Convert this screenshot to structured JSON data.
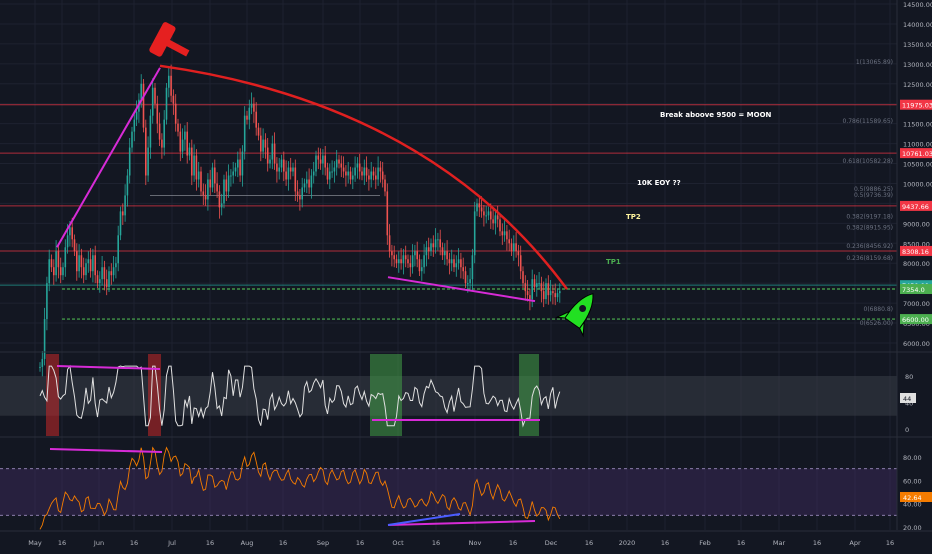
{
  "chart_data": {
    "type": "candlestick",
    "title": "",
    "xlabel": "",
    "ylabel": "",
    "ylim": [
      5800,
      14650
    ],
    "y_ticks": [
      "6000.00",
      "6500.00",
      "7000.00",
      "7500.00",
      "8000.00",
      "8500.00",
      "9000.00",
      "9500.00",
      "10000.00",
      "10500.00",
      "11000.00",
      "11500.00",
      "12000.00",
      "12500.00",
      "13000.00",
      "13500.00",
      "14000.00",
      "14500.00"
    ],
    "x_ticks": [
      "May",
      "16",
      "Jun",
      "16",
      "Jul",
      "16",
      "Aug",
      "16",
      "Sep",
      "16",
      "Oct",
      "16",
      "Nov",
      "16",
      "Dec",
      "16",
      "2020",
      "16",
      "Feb",
      "16",
      "Mar",
      "16",
      "Apr",
      "16"
    ],
    "price_markers": [
      {
        "label": "11975.03",
        "value": 11975,
        "color": "#f23645"
      },
      {
        "label": "10761.03",
        "value": 10761,
        "color": "#f23645"
      },
      {
        "label": "9437.66",
        "value": 9437.66,
        "color": "#f23645"
      },
      {
        "label": "8308.16",
        "value": 8308.16,
        "color": "#f23645"
      },
      {
        "label": "7450.00",
        "value": 7450,
        "color": "#26a69a"
      },
      {
        "label": "7354.0",
        "value": 7354,
        "color": "#4caf50"
      },
      {
        "label": "6600.00",
        "value": 6600,
        "color": "#4caf50"
      }
    ],
    "annotations": [
      {
        "text": "Break aboove 9500 = MOON",
        "color": "#ffffff"
      },
      {
        "text": "10K EOY ??",
        "color": "#ffffff"
      },
      {
        "text": "TP2",
        "color": "#fff59d"
      },
      {
        "text": "TP1",
        "color": "#4caf50"
      }
    ],
    "fib_labels": [
      "1(13065.89)",
      "0.786(11589.65)",
      "0.618(10582.28)",
      "0.5(9886.25)",
      "0.5(9736.39)",
      "0.382(9197.18)",
      "0.382(8915.95)",
      "0.236(8456.92)",
      "0.236(8159.68)",
      "0(6880.8)",
      "0(6526.00)"
    ],
    "close": [
      5400,
      5600,
      6600,
      7500,
      8100,
      7900,
      7700,
      8300,
      7900,
      7700,
      7900,
      8400,
      8700,
      8900,
      8600,
      8300,
      7800,
      8200,
      7900,
      7700,
      8000,
      8100,
      7800,
      8200,
      7700,
      7500,
      7600,
      7900,
      7600,
      7400,
      7800,
      7700,
      7900,
      8000,
      8700,
      9300,
      9200,
      9700,
      10200,
      10900,
      11300,
      11600,
      11800,
      12100,
      12500,
      11400,
      10200,
      10900,
      11700,
      12400,
      12000,
      11500,
      11100,
      10900,
      11600,
      12400,
      12700,
      12200,
      12000,
      11500,
      11300,
      10800,
      11100,
      11300,
      10700,
      10900,
      10200,
      10700,
      10100,
      10300,
      9800,
      9700,
      9600,
      10100,
      9900,
      10400,
      10000,
      9800,
      9400,
      9500,
      10100,
      9800,
      10200,
      10200,
      10300,
      10400,
      10600,
      10200,
      10800,
      11700,
      11600,
      11900,
      12000,
      11800,
      11400,
      11200,
      10800,
      11100,
      10900,
      10500,
      10600,
      11000,
      10500,
      10300,
      10400,
      10600,
      10300,
      10100,
      10400,
      10300,
      10400,
      9800,
      9700,
      9600,
      9900,
      10000,
      10100,
      9900,
      10200,
      10300,
      10700,
      10600,
      10500,
      10700,
      10400,
      10100,
      10300,
      10300,
      10400,
      10600,
      10500,
      10400,
      10300,
      10200,
      10300,
      10100,
      10200,
      10400,
      10500,
      10300,
      10200,
      10400,
      10200,
      10100,
      10300,
      10200,
      10100,
      10400,
      10300,
      10100,
      9800,
      8700,
      8300,
      8200,
      8100,
      8000,
      8100,
      8000,
      8200,
      8100,
      8000,
      7900,
      8200,
      8300,
      8100,
      7800,
      7900,
      8200,
      8400,
      8300,
      8500,
      8400,
      8600,
      8600,
      8400,
      8200,
      8300,
      8100,
      8000,
      8100,
      7900,
      8000,
      8100,
      7900,
      7800,
      7500,
      7500,
      7600,
      8200,
      9300,
      9500,
      9400,
      9300,
      9200,
      9200,
      9300,
      9100,
      9000,
      9200,
      9100,
      8800,
      8700,
      8800,
      8600,
      8500,
      8300,
      8500,
      8300,
      8200,
      7800,
      7500,
      7300,
      7200,
      7100,
      7600,
      7400,
      7500,
      7500,
      7300,
      7100,
      7500,
      7200,
      7300,
      7250,
      7150,
      7250,
      7300
    ]
  },
  "rsi_panel": {
    "ticks": [
      "80",
      "40",
      "0"
    ],
    "last_value": "44",
    "upper": 80,
    "lower": 20
  },
  "osc_panel": {
    "ticks": [
      "80.00",
      "60.00",
      "40.00",
      "20.00"
    ],
    "last_value": "42.64"
  }
}
